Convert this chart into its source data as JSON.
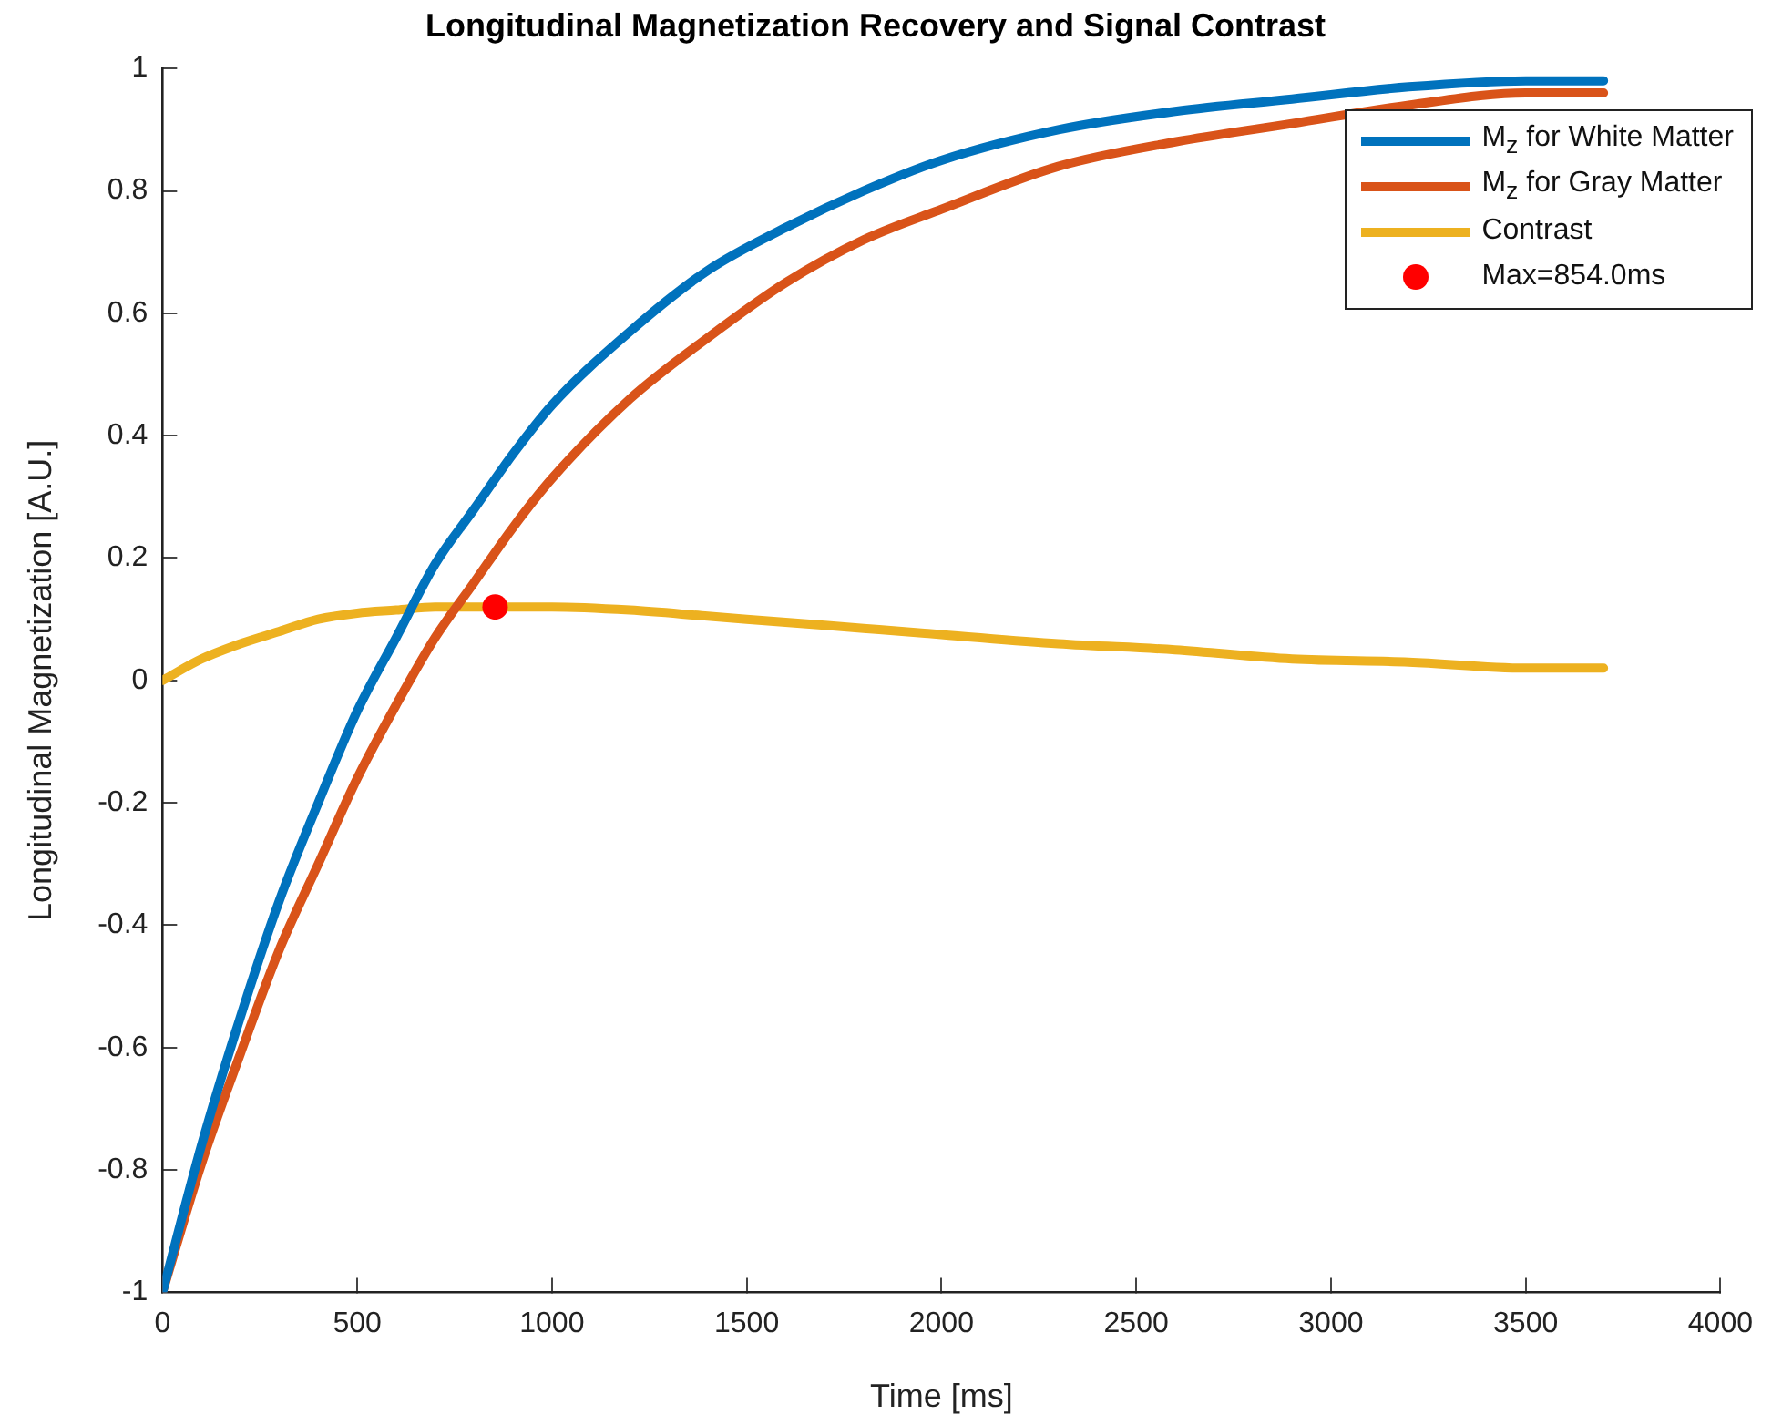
{
  "chart_data": {
    "type": "line",
    "title": "Longitudinal Magnetization Recovery and Signal Contrast",
    "xlabel": "Time [ms]",
    "ylabel": "Longitudinal Magnetization [A.U.]",
    "x": [
      0,
      100,
      200,
      300,
      400,
      500,
      600,
      700,
      800,
      900,
      1000,
      1200,
      1400,
      1600,
      1800,
      2000,
      2300,
      2600,
      2900,
      3200,
      3500,
      3700
    ],
    "series": [
      {
        "name": "M$_{z}$ for White Matter",
        "color": "#0072bd",
        "values": [
          -1,
          -0.76,
          -0.55,
          -0.36,
          -0.2,
          -0.05,
          0.07,
          0.19,
          0.28,
          0.37,
          0.45,
          0.57,
          0.67,
          0.74,
          0.8,
          0.85,
          0.9,
          0.93,
          0.95,
          0.97,
          0.98,
          0.98
        ]
      },
      {
        "name": "M$_{z}$ for Gray Matter",
        "color": "#d95319",
        "values": [
          -1,
          -0.79,
          -0.61,
          -0.44,
          -0.3,
          -0.16,
          -0.04,
          0.07,
          0.16,
          0.25,
          0.33,
          0.46,
          0.56,
          0.65,
          0.72,
          0.77,
          0.84,
          0.88,
          0.91,
          0.94,
          0.96,
          0.96
        ]
      },
      {
        "name": "Contrast",
        "color": "#edb120",
        "values": [
          0,
          0.035,
          0.06,
          0.08,
          0.1,
          0.11,
          0.115,
          0.12,
          0.12,
          0.12,
          0.12,
          0.115,
          0.105,
          0.095,
          0.085,
          0.075,
          0.06,
          0.05,
          0.035,
          0.03,
          0.02,
          0.02
        ]
      },
      {
        "name": "Max=854.0ms",
        "type": "scatter",
        "color": "#ff0000",
        "x": [
          854
        ],
        "values": [
          0.12
        ],
        "marker": "circle"
      }
    ],
    "xlim": [
      0,
      4000
    ],
    "xticks": [
      0,
      500,
      1000,
      1500,
      2000,
      2500,
      3000,
      3500,
      4000
    ],
    "ylim": [
      -1,
      1
    ],
    "yticks": [
      -1,
      -0.8,
      -0.6,
      -0.4,
      -0.2,
      0,
      0.2,
      0.4,
      0.6,
      0.8,
      1
    ],
    "grid": false,
    "legend": "top right",
    "marker": "none",
    "line_style": "solid"
  }
}
